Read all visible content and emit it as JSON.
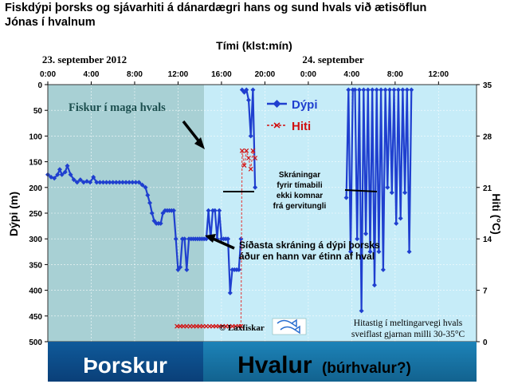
{
  "title_line1": "Fiskdýpi þorsks og sjávarhiti á dánardægri hans og sund hvals við ætisöflun",
  "title_line2": "Jónas í hvalnum",
  "chart_data": {
    "type": "line",
    "xlabel": "Tími (klst:mín)",
    "ylabel": "Dýpi (m)",
    "y2label": "Hiti (°C)",
    "x_unit": "hours since 23. september 2012 00:00",
    "xlim": [
      0,
      39.5
    ],
    "ylim": [
      500,
      0
    ],
    "y2lim": [
      0,
      35
    ],
    "x_ticks": [
      "0:00",
      "4:00",
      "8:00",
      "12:00",
      "16:00",
      "20:00",
      "0:00",
      "4:00",
      "8:00",
      "12:00"
    ],
    "x_tick_hours": [
      0,
      4,
      8,
      12,
      16,
      20,
      24,
      28,
      32,
      36
    ],
    "y_ticks": [
      0,
      50,
      100,
      150,
      200,
      250,
      300,
      350,
      400,
      450,
      500
    ],
    "y2_ticks": [
      0,
      7,
      14,
      21,
      28,
      35
    ],
    "date_labels": [
      {
        "text": "23. september 2012",
        "hour": 6
      },
      {
        "text": "24. september",
        "hour": 30
      }
    ],
    "phases": [
      {
        "label": "Þorskur",
        "from": 0,
        "to": 14.4,
        "color": "#a8d0d4"
      },
      {
        "label": "Hvalur",
        "sublabel": "(búrhvalur?)",
        "from": 14.4,
        "to": 39.5,
        "color": "#c6ecf8"
      }
    ],
    "series": [
      {
        "name": "Dýpi",
        "axis": "left",
        "color": "#1f3fcf",
        "segments": [
          [
            [
              0.0,
              175
            ],
            [
              0.3,
              180
            ],
            [
              0.6,
              182
            ],
            [
              0.9,
              175
            ],
            [
              1.1,
              165
            ],
            [
              1.3,
              175
            ],
            [
              1.6,
              170
            ],
            [
              1.8,
              158
            ],
            [
              2.1,
              175
            ],
            [
              2.4,
              185
            ],
            [
              2.7,
              190
            ],
            [
              3.0,
              185
            ],
            [
              3.3,
              190
            ],
            [
              3.6,
              188
            ],
            [
              3.9,
              190
            ],
            [
              4.2,
              180
            ],
            [
              4.5,
              190
            ],
            [
              4.8,
              190
            ],
            [
              5.1,
              190
            ],
            [
              5.4,
              190
            ],
            [
              5.7,
              190
            ],
            [
              6.0,
              190
            ],
            [
              6.3,
              190
            ],
            [
              6.6,
              190
            ],
            [
              6.9,
              190
            ],
            [
              7.2,
              190
            ],
            [
              7.5,
              190
            ],
            [
              7.8,
              190
            ],
            [
              8.1,
              190
            ],
            [
              8.4,
              190
            ],
            [
              8.7,
              195
            ],
            [
              9.0,
              200
            ],
            [
              9.2,
              215
            ],
            [
              9.4,
              230
            ],
            [
              9.6,
              250
            ],
            [
              9.8,
              265
            ],
            [
              10.0,
              270
            ],
            [
              10.2,
              270
            ],
            [
              10.4,
              270
            ],
            [
              10.6,
              250
            ],
            [
              10.8,
              245
            ],
            [
              11.0,
              245
            ],
            [
              11.2,
              245
            ],
            [
              11.4,
              245
            ],
            [
              11.6,
              245
            ],
            [
              11.8,
              300
            ],
            [
              12.0,
              360
            ],
            [
              12.2,
              355
            ],
            [
              12.4,
              300
            ],
            [
              12.6,
              300
            ],
            [
              12.8,
              360
            ],
            [
              13.0,
              300
            ],
            [
              13.2,
              300
            ],
            [
              13.4,
              300
            ],
            [
              13.6,
              300
            ],
            [
              13.8,
              300
            ],
            [
              14.0,
              300
            ],
            [
              14.2,
              300
            ],
            [
              14.4,
              300
            ],
            [
              14.6,
              300
            ],
            [
              14.8,
              245
            ],
            [
              15.0,
              300
            ],
            [
              15.2,
              245
            ],
            [
              15.4,
              245
            ],
            [
              15.6,
              300
            ],
            [
              15.8,
              245
            ],
            [
              16.0,
              300
            ],
            [
              16.2,
              300
            ],
            [
              16.4,
              300
            ],
            [
              16.6,
              300
            ],
            [
              16.8,
              405
            ],
            [
              17.0,
              360
            ],
            [
              17.2,
              360
            ],
            [
              17.4,
              360
            ],
            [
              17.6,
              360
            ],
            [
              17.8,
              300
            ]
          ],
          [
            [
              17.9,
              10
            ],
            [
              18.1,
              15
            ],
            [
              18.3,
              10
            ],
            [
              18.5,
              30
            ],
            [
              18.7,
              100
            ],
            [
              18.9,
              10
            ],
            [
              19.1,
              200
            ]
          ],
          [
            [
              27.5,
              220
            ],
            [
              27.7,
              10
            ],
            [
              27.9,
              325
            ],
            [
              28.1,
              10
            ],
            [
              28.3,
              10
            ],
            [
              28.5,
              300
            ],
            [
              28.7,
              10
            ],
            [
              28.9,
              440
            ],
            [
              29.1,
              10
            ],
            [
              29.3,
              290
            ],
            [
              29.5,
              10
            ],
            [
              29.7,
              325
            ],
            [
              29.9,
              10
            ],
            [
              30.1,
              390
            ],
            [
              30.3,
              10
            ],
            [
              30.5,
              325
            ],
            [
              30.7,
              10
            ],
            [
              30.9,
              360
            ],
            [
              31.1,
              10
            ],
            [
              31.3,
              200
            ],
            [
              31.5,
              10
            ],
            [
              31.7,
              210
            ],
            [
              31.9,
              10
            ],
            [
              32.1,
              270
            ],
            [
              32.3,
              10
            ],
            [
              32.5,
              260
            ],
            [
              32.7,
              10
            ],
            [
              32.9,
              210
            ],
            [
              33.1,
              10
            ],
            [
              33.3,
              325
            ],
            [
              33.5,
              10
            ]
          ]
        ]
      },
      {
        "name": "Hiti",
        "axis": "right",
        "color": "#e05050",
        "segments": [
          [
            [
              11.9,
              2.1
            ],
            [
              12.2,
              2.1
            ],
            [
              12.5,
              2.1
            ],
            [
              12.8,
              2.1
            ],
            [
              13.1,
              2.1
            ],
            [
              13.4,
              2.1
            ],
            [
              13.7,
              2.1
            ],
            [
              14.0,
              2.1
            ],
            [
              14.3,
              2.1
            ],
            [
              14.6,
              2.1
            ],
            [
              14.9,
              2.1
            ],
            [
              15.2,
              2.1
            ],
            [
              15.5,
              2.1
            ],
            [
              15.8,
              2.1
            ],
            [
              16.1,
              2.1
            ],
            [
              16.4,
              2.1
            ],
            [
              16.7,
              2.1
            ],
            [
              17.0,
              2.1
            ],
            [
              17.3,
              2.1
            ],
            [
              17.6,
              2.1
            ],
            [
              17.8,
              2.1
            ],
            [
              17.9,
              26
            ],
            [
              18.1,
              24
            ],
            [
              18.3,
              26
            ],
            [
              18.5,
              25
            ],
            [
              18.7,
              23.5
            ],
            [
              18.9,
              26
            ],
            [
              19.1,
              25
            ]
          ]
        ]
      }
    ],
    "legend_placement": "top-center"
  },
  "annotations": {
    "fish_in_whale": "Fiskur í maga hvals",
    "gap_line1": "Skráningar",
    "gap_line2": "fyrir tímabili",
    "gap_line3": "ekki komnar",
    "gap_line4": "frá gervitungli",
    "last_line1": "Síðasta skráning á dýpi þorsks",
    "last_line2": "áður en hann var étinn af hval",
    "copyright": "© Laxfiskar",
    "note_line1": "Hitastig í meltingarvegi hvals",
    "note_line2": "sveiflast gjarnan milli 30-35°C"
  },
  "bands": {
    "cod": "Þorskur",
    "whale": "Hvalur",
    "whale_sub": "(búrhvalur?)"
  },
  "colors": {
    "cod_area": "#a8d0d4",
    "whale_area": "#c6ecf8",
    "cod_band": "#0c4d8c",
    "whale_band": "#1873a6",
    "depth": "#1f3fcf",
    "temp": "#e05050"
  }
}
